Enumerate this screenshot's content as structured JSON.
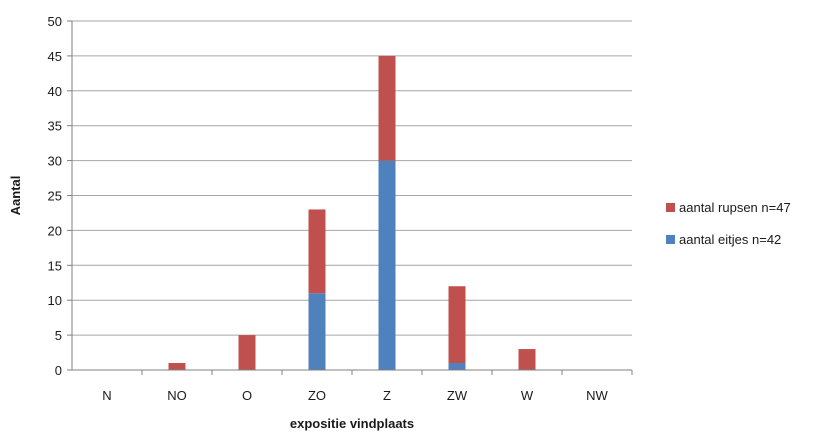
{
  "chart_data": {
    "type": "bar",
    "stacked": true,
    "categories": [
      "N",
      "NO",
      "O",
      "ZO",
      "Z",
      "ZW",
      "W",
      "NW"
    ],
    "series": [
      {
        "name": "aantal eitjes n=42",
        "color": "#4f81bd",
        "values": [
          0,
          0,
          0,
          11,
          30,
          1,
          0,
          0
        ]
      },
      {
        "name": "aantal rupsen n=47",
        "color": "#c0504d",
        "values": [
          0,
          1,
          5,
          12,
          15,
          11,
          3,
          0
        ]
      }
    ],
    "xlabel": "expositie vindplaats",
    "ylabel": "Aantal",
    "ylim": [
      0,
      50
    ],
    "yticks": [
      0,
      5,
      10,
      15,
      20,
      25,
      30,
      35,
      40,
      45,
      50
    ],
    "grid": true,
    "legend": {
      "position": "right",
      "entries": [
        {
          "label": "aantal rupsen n=47",
          "color": "#c0504d"
        },
        {
          "label": "aantal eitjes n=42",
          "color": "#4f81bd"
        }
      ]
    }
  }
}
